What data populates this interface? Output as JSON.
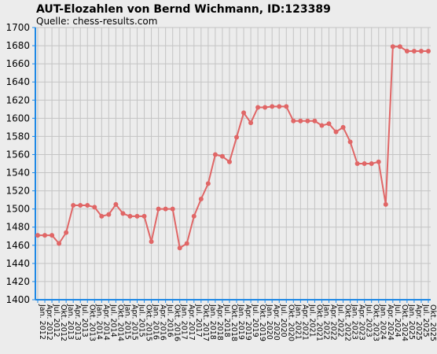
{
  "chart_data": {
    "type": "line",
    "title": "AUT-Elozahlen von Bernd Wichmann, ID:123389",
    "subtitle": "Quelle: chess-results.com",
    "xlabel": "",
    "ylabel": "",
    "ylim": [
      1400,
      1700
    ],
    "yticks": [
      1400,
      1420,
      1440,
      1460,
      1480,
      1500,
      1520,
      1540,
      1560,
      1580,
      1600,
      1620,
      1640,
      1660,
      1680,
      1700
    ],
    "grid": true,
    "legend": "none",
    "line_color": "#e06666",
    "x_tick_labels": [
      "Jan. 2012",
      "Apr. 2012",
      "Jul. 2012",
      "Okt. 2012",
      "Jan. 2013",
      "Apr. 2013",
      "Jul. 2013",
      "Okt. 2013",
      "Jan. 2014",
      "Apr. 2014",
      "Jul. 2014",
      "Okt. 2014",
      "Jan. 2015",
      "Apr. 2015",
      "Jul. 2015",
      "Okt. 2015",
      "Jan. 2016",
      "Apr. 2016",
      "Jul. 2016",
      "Okt. 2016",
      "Jan. 2017",
      "Apr. 2017",
      "Jul. 2017",
      "Okt. 2017",
      "Jan. 2018",
      "Apr. 2018",
      "Jul. 2018",
      "Okt. 2018",
      "Jan. 2019",
      "Apr. 2019",
      "Jul. 2019",
      "Okt. 2019",
      "Jan. 2020",
      "Apr. 2020",
      "Jul. 2020",
      "Okt. 2020",
      "Jan. 2021",
      "Apr. 2021",
      "Jul. 2021",
      "Okt. 2021",
      "Jan. 2022",
      "Apr. 2022",
      "Jul. 2022",
      "Okt. 2022",
      "Jan. 2023",
      "Apr. 2023",
      "Jul. 2023",
      "Okt. 2023",
      "Jan. 2024",
      "Apr. 2024",
      "Jul. 2024",
      "Okt. 2024",
      "Jan. 2025",
      "Apr. 2025",
      "Jul. 2025",
      "Okt. 2025"
    ],
    "values": [
      1471,
      1471,
      1471,
      1462,
      1474,
      1504,
      1504,
      1504,
      1502,
      1492,
      1494,
      1505,
      1495,
      1492,
      1492,
      1492,
      1464,
      1500,
      1500,
      1500,
      1457,
      1462,
      1492,
      1511,
      1528,
      1560,
      1558,
      1552,
      1579,
      1606,
      1595,
      1612,
      1612,
      1613,
      1613,
      1613,
      1597,
      1597,
      1597,
      1597,
      1592,
      1594,
      1585,
      1590,
      1574,
      1550,
      1550,
      1550,
      1552,
      1505,
      1679,
      1679,
      1674,
      1674,
      1674,
      1674
    ]
  }
}
